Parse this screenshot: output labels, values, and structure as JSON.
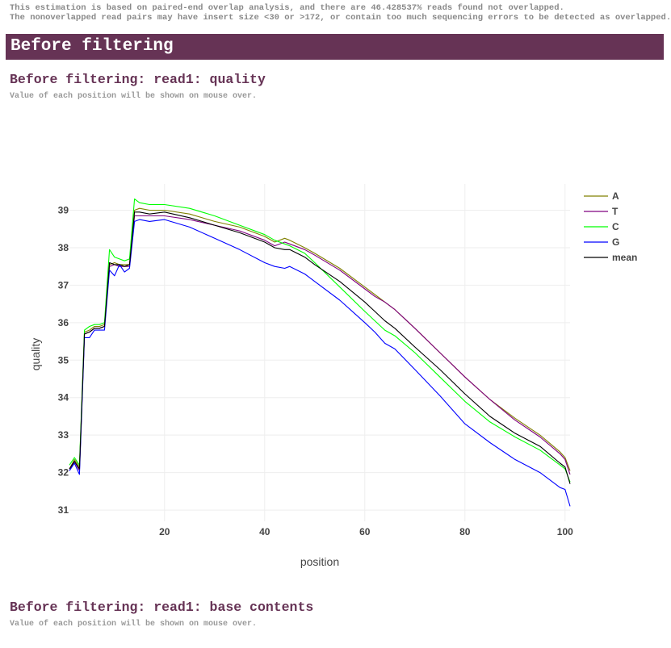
{
  "notes": {
    "line1": "This estimation is based on paired-end overlap analysis, and there are 46.428537% reads found not overlapped.",
    "line2": "The nonoverlapped read pairs may have insert size <30 or >172, or contain too much sequencing errors to be detected as overlapped."
  },
  "section": {
    "title": "Before filtering"
  },
  "quality_section": {
    "title": "Before filtering: read1: quality",
    "hint": "Value of each position will be shown on mouse over."
  },
  "content_section": {
    "title": "Before filtering: read1: base contents",
    "hint": "Value of each position will be shown on mouse over."
  },
  "chart_data": {
    "type": "line",
    "xlabel": "position",
    "ylabel": "quality",
    "xlim": [
      1,
      101
    ],
    "ylim": [
      30.7,
      39.7
    ],
    "xticks": [
      20,
      40,
      60,
      80,
      100
    ],
    "yticks": [
      31,
      32,
      33,
      34,
      35,
      36,
      37,
      38,
      39
    ],
    "grid": true,
    "legend_position": "top-right",
    "series": [
      {
        "name": "A",
        "color": "#808000",
        "x": [
          1,
          2,
          3,
          4,
          5,
          6,
          7,
          8,
          9,
          10,
          11,
          12,
          13,
          14,
          15,
          17,
          20,
          25,
          30,
          35,
          40,
          42,
          44,
          45,
          48,
          50,
          55,
          60,
          62,
          64,
          66,
          70,
          75,
          80,
          85,
          90,
          95,
          99,
          100,
          101
        ],
        "y": [
          32.1,
          32.35,
          32.15,
          35.75,
          35.8,
          35.9,
          35.9,
          35.95,
          37.55,
          37.6,
          37.55,
          37.55,
          37.55,
          39.0,
          39.05,
          39.0,
          39.0,
          38.9,
          38.7,
          38.55,
          38.3,
          38.15,
          38.25,
          38.2,
          38.0,
          37.85,
          37.45,
          36.95,
          36.75,
          36.55,
          36.35,
          35.85,
          35.2,
          34.55,
          33.95,
          33.45,
          33.0,
          32.55,
          32.4,
          32.05
        ]
      },
      {
        "name": "T",
        "color": "#800080",
        "x": [
          1,
          2,
          3,
          4,
          5,
          6,
          7,
          8,
          9,
          10,
          11,
          12,
          13,
          14,
          15,
          17,
          20,
          25,
          30,
          35,
          40,
          42,
          44,
          45,
          48,
          50,
          55,
          60,
          62,
          64,
          66,
          70,
          75,
          80,
          85,
          90,
          95,
          99,
          100,
          101
        ],
        "y": [
          32.05,
          32.3,
          32.05,
          35.7,
          35.75,
          35.85,
          35.85,
          35.9,
          37.5,
          37.55,
          37.5,
          37.5,
          37.5,
          38.85,
          38.85,
          38.85,
          38.85,
          38.75,
          38.6,
          38.45,
          38.2,
          38.05,
          38.15,
          38.1,
          37.95,
          37.8,
          37.4,
          36.9,
          36.7,
          36.55,
          36.35,
          35.85,
          35.2,
          34.55,
          33.95,
          33.4,
          32.95,
          32.5,
          32.35,
          31.95
        ]
      },
      {
        "name": "C",
        "color": "#00ff00",
        "x": [
          1,
          2,
          3,
          4,
          5,
          6,
          7,
          8,
          9,
          10,
          11,
          12,
          13,
          14,
          15,
          17,
          20,
          25,
          30,
          35,
          40,
          42,
          44,
          45,
          48,
          50,
          55,
          60,
          62,
          64,
          66,
          70,
          75,
          80,
          85,
          90,
          95,
          99,
          100,
          101
        ],
        "y": [
          32.2,
          32.4,
          32.2,
          35.8,
          35.9,
          35.95,
          35.95,
          36.0,
          37.95,
          37.75,
          37.7,
          37.65,
          37.7,
          39.3,
          39.2,
          39.15,
          39.15,
          39.05,
          38.85,
          38.6,
          38.35,
          38.2,
          38.1,
          38.05,
          37.85,
          37.6,
          36.95,
          36.3,
          36.05,
          35.8,
          35.65,
          35.2,
          34.55,
          33.9,
          33.35,
          32.95,
          32.6,
          32.2,
          32.1,
          31.75
        ]
      },
      {
        "name": "G",
        "color": "#0000ff",
        "x": [
          1,
          2,
          3,
          4,
          5,
          6,
          7,
          8,
          9,
          10,
          11,
          12,
          13,
          14,
          15,
          17,
          20,
          25,
          30,
          35,
          40,
          42,
          44,
          45,
          48,
          50,
          55,
          60,
          62,
          64,
          66,
          70,
          75,
          80,
          85,
          90,
          95,
          99,
          100,
          101
        ],
        "y": [
          32.05,
          32.25,
          31.95,
          35.6,
          35.6,
          35.8,
          35.8,
          35.8,
          37.4,
          37.25,
          37.55,
          37.35,
          37.45,
          38.7,
          38.75,
          38.7,
          38.75,
          38.55,
          38.25,
          37.95,
          37.6,
          37.5,
          37.45,
          37.5,
          37.3,
          37.1,
          36.6,
          36.0,
          35.75,
          35.45,
          35.3,
          34.75,
          34.05,
          33.3,
          32.8,
          32.35,
          32.0,
          31.6,
          31.55,
          31.1
        ]
      },
      {
        "name": "mean",
        "color": "#000000",
        "x": [
          1,
          2,
          3,
          4,
          5,
          6,
          7,
          8,
          9,
          10,
          11,
          12,
          13,
          14,
          15,
          17,
          20,
          25,
          30,
          35,
          40,
          42,
          44,
          45,
          48,
          50,
          55,
          60,
          62,
          64,
          66,
          70,
          75,
          80,
          85,
          90,
          95,
          99,
          100,
          101
        ],
        "y": [
          32.1,
          32.3,
          32.1,
          35.7,
          35.75,
          35.85,
          35.85,
          35.9,
          37.6,
          37.55,
          37.55,
          37.5,
          37.55,
          38.95,
          38.95,
          38.9,
          38.95,
          38.8,
          38.6,
          38.4,
          38.15,
          38.0,
          37.95,
          37.95,
          37.75,
          37.55,
          37.1,
          36.55,
          36.3,
          36.05,
          35.85,
          35.35,
          34.75,
          34.1,
          33.5,
          33.05,
          32.7,
          32.25,
          32.15,
          31.7
        ]
      }
    ]
  }
}
